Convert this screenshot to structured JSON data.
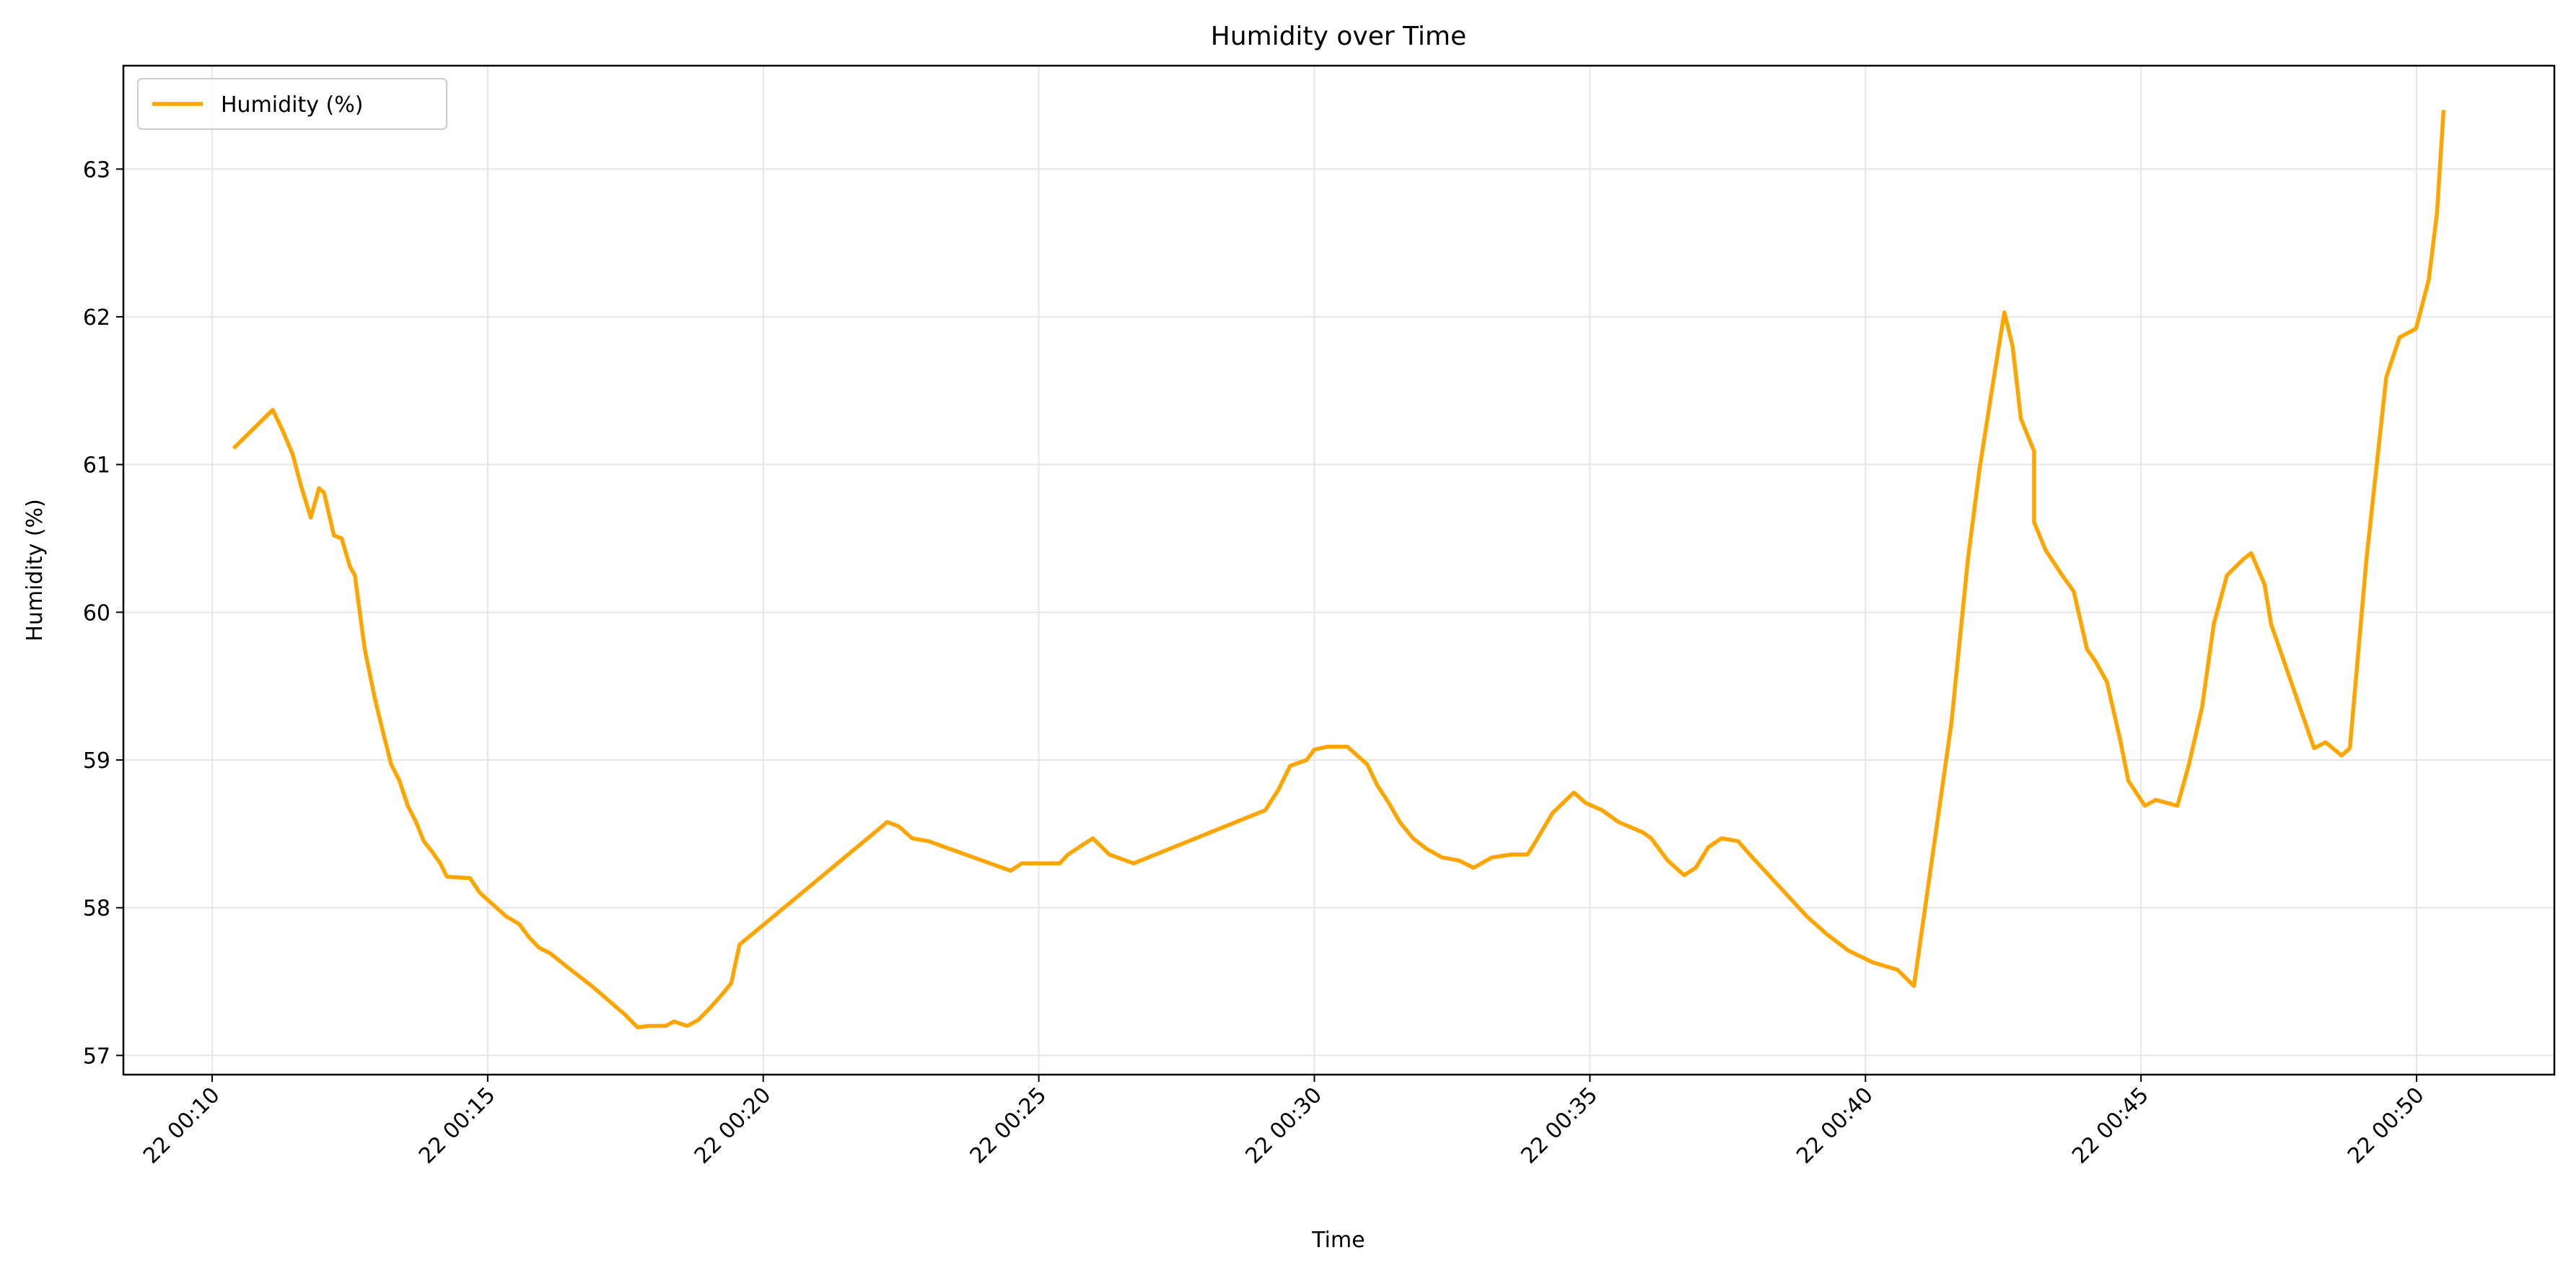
{
  "chart_data": {
    "type": "line",
    "title": "Humidity over Time",
    "x_label": "Time",
    "y_label": "Humidity (%)",
    "x": [
      10.39,
      11.1,
      11.28,
      11.46,
      11.61,
      11.79,
      11.94,
      12.03,
      12.21,
      12.35,
      12.5,
      12.59,
      12.65,
      12.77,
      12.95,
      13.1,
      13.25,
      13.4,
      13.55,
      13.7,
      13.84,
      13.99,
      14.14,
      14.26,
      14.68,
      14.86,
      15.1,
      15.34,
      15.57,
      15.75,
      15.93,
      16.14,
      16.44,
      16.89,
      17.48,
      17.72,
      17.93,
      18.23,
      18.38,
      18.62,
      18.82,
      19.03,
      19.27,
      19.42,
      19.57,
      22.25,
      22.46,
      22.7,
      23.0,
      24.49,
      24.69,
      25.38,
      25.53,
      25.98,
      26.28,
      26.72,
      29.11,
      29.35,
      29.56,
      29.86,
      30.0,
      30.24,
      30.6,
      30.78,
      30.96,
      31.14,
      31.35,
      31.55,
      31.79,
      32.03,
      32.32,
      32.62,
      32.89,
      33.22,
      33.58,
      33.87,
      34.02,
      34.32,
      34.71,
      34.92,
      35.22,
      35.52,
      35.96,
      36.11,
      36.41,
      36.71,
      36.92,
      37.15,
      37.39,
      37.69,
      37.9,
      38.94,
      39.3,
      39.69,
      40.13,
      40.58,
      40.88,
      41.56,
      41.86,
      42.07,
      42.28,
      42.52,
      42.67,
      42.82,
      43.06,
      43.06,
      43.27,
      43.57,
      43.78,
      44.02,
      44.17,
      44.38,
      44.62,
      44.77,
      45.07,
      45.27,
      45.66,
      45.87,
      46.11,
      46.32,
      46.56,
      46.86,
      47.0,
      47.24,
      47.36,
      48.14,
      48.35,
      48.64,
      48.79,
      49.09,
      49.45,
      49.69,
      49.99,
      50.22,
      50.37,
      50.49
    ],
    "series": [
      {
        "name": "Humidity (%)",
        "color": "#ffa500",
        "values": [
          61.11,
          61.37,
          61.23,
          61.07,
          60.86,
          60.64,
          60.84,
          60.81,
          60.52,
          60.5,
          60.31,
          60.25,
          60.08,
          59.75,
          59.42,
          59.19,
          58.97,
          58.86,
          58.69,
          58.58,
          58.45,
          58.38,
          58.3,
          58.21,
          58.2,
          58.1,
          58.02,
          57.94,
          57.89,
          57.8,
          57.73,
          57.69,
          57.6,
          57.47,
          57.28,
          57.19,
          57.2,
          57.2,
          57.23,
          57.2,
          57.24,
          57.32,
          57.42,
          57.49,
          57.75,
          58.58,
          58.55,
          58.47,
          58.45,
          58.25,
          58.3,
          58.3,
          58.36,
          58.47,
          58.36,
          58.3,
          58.66,
          58.8,
          58.96,
          59.0,
          59.07,
          59.09,
          59.09,
          59.03,
          58.97,
          58.83,
          58.71,
          58.58,
          58.47,
          58.4,
          58.34,
          58.32,
          58.27,
          58.34,
          58.36,
          58.36,
          58.45,
          58.64,
          58.78,
          58.71,
          58.66,
          58.58,
          58.51,
          58.47,
          58.32,
          58.22,
          58.27,
          58.41,
          58.47,
          58.45,
          58.36,
          57.94,
          57.82,
          57.71,
          57.63,
          57.58,
          57.47,
          59.25,
          60.36,
          60.97,
          61.47,
          62.03,
          61.8,
          61.31,
          61.09,
          60.61,
          60.42,
          60.25,
          60.14,
          59.75,
          59.67,
          59.53,
          59.14,
          58.86,
          58.69,
          58.73,
          58.69,
          58.97,
          59.36,
          59.92,
          60.25,
          60.36,
          60.4,
          60.19,
          59.92,
          59.08,
          59.12,
          59.03,
          59.08,
          60.36,
          61.59,
          61.86,
          61.92,
          62.25,
          62.7,
          63.4
        ]
      }
    ],
    "xlim": [
      8.39,
      52.5
    ],
    "xticks": [
      {
        "value": 10,
        "label": "22 00:10"
      },
      {
        "value": 15,
        "label": "22 00:15"
      },
      {
        "value": 20,
        "label": "22 00:20"
      },
      {
        "value": 25,
        "label": "22 00:25"
      },
      {
        "value": 30,
        "label": "22 00:30"
      },
      {
        "value": 35,
        "label": "22 00:35"
      },
      {
        "value": 40,
        "label": "22 00:40"
      },
      {
        "value": 45,
        "label": "22 00:45"
      },
      {
        "value": 50,
        "label": "22 00:50"
      }
    ],
    "ylim": [
      56.87,
      63.7
    ],
    "yticks": [
      57,
      58,
      59,
      60,
      61,
      62,
      63
    ],
    "grid": true,
    "legend": "upper left"
  }
}
